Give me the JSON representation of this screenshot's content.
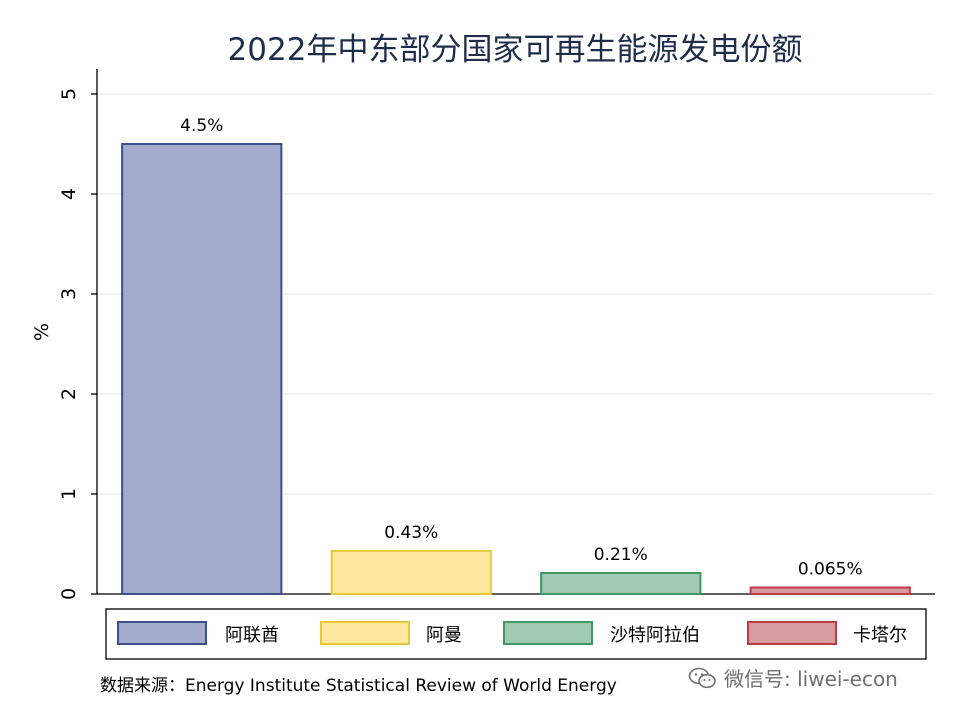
{
  "chart_data": {
    "type": "bar",
    "title": "2022年中东部分国家可再生能源发电份额",
    "ylabel": "%",
    "xlabel": "",
    "ylim": [
      0,
      5
    ],
    "yticks": [
      0,
      1,
      2,
      3,
      4,
      5
    ],
    "grid": true,
    "legend_position": "bottom",
    "series": [
      {
        "name": "阿联酋",
        "value": 4.5,
        "label": "4.5%",
        "fill": "#a2abcb",
        "stroke": "#3d4f8a"
      },
      {
        "name": "阿曼",
        "value": 0.43,
        "label": "0.43%",
        "fill": "#fde89d",
        "stroke": "#e8c93b"
      },
      {
        "name": "沙特阿拉伯",
        "value": 0.21,
        "label": "0.21%",
        "fill": "#a0cbb2",
        "stroke": "#3e9a61"
      },
      {
        "name": "卡塔尔",
        "value": 0.065,
        "label": "0.065%",
        "fill": "#d89ba0",
        "stroke": "#bf3a45"
      }
    ]
  },
  "source_text": "数据来源：Energy Institute Statistical Review of World Energy",
  "watermark_text": "微信号: liwei-econ"
}
